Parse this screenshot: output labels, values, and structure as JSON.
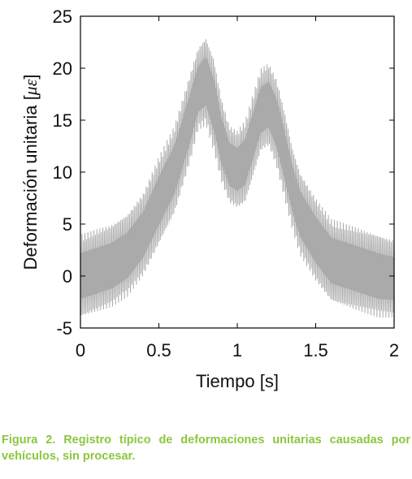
{
  "chart_data": {
    "type": "line",
    "title": "",
    "xlabel": "Tiempo [s]",
    "ylabel": "Deformación unitaria [",
    "ylabel_unit": "με",
    "ylabel_close": "]",
    "xlim": [
      0,
      2
    ],
    "ylim": [
      -5,
      25
    ],
    "xticks": [
      0,
      0.5,
      1,
      1.5,
      2
    ],
    "xtick_labels": [
      "0",
      "0.5",
      "1",
      "1.5",
      "2"
    ],
    "yticks": [
      -5,
      0,
      5,
      10,
      15,
      20,
      25
    ],
    "ytick_labels": [
      "-5",
      "0",
      "5",
      "10",
      "15",
      "20",
      "25"
    ],
    "grid": false,
    "series": [
      {
        "color": "#aaaaaa",
        "envelope_x": [
          0,
          0.1,
          0.2,
          0.3,
          0.4,
          0.5,
          0.6,
          0.7,
          0.75,
          0.8,
          0.85,
          0.9,
          0.95,
          1.0,
          1.05,
          1.1,
          1.15,
          1.2,
          1.25,
          1.3,
          1.35,
          1.4,
          1.5,
          1.6,
          1.7,
          1.8,
          1.9,
          2.0
        ],
        "envelope_upper": [
          4,
          4.5,
          5,
          6,
          8,
          11.5,
          14.5,
          19.5,
          22,
          23,
          21,
          17,
          14.5,
          14,
          15,
          17.5,
          20,
          20.5,
          19,
          16,
          12.5,
          10,
          7.5,
          5.5,
          5,
          4.5,
          4,
          3.5
        ],
        "envelope_lower": [
          -4,
          -3.5,
          -3,
          -2,
          0,
          3,
          6,
          11,
          14,
          14.5,
          12,
          9,
          7,
          6.5,
          7,
          9.5,
          12,
          12.5,
          10.5,
          7.5,
          4.5,
          2,
          -0.5,
          -2.5,
          -3,
          -3.5,
          -4,
          -4
        ]
      }
    ]
  },
  "caption": {
    "text": "Figura 2. Registro típico de deformaciones unitarias causadas por vehículos, sin procesar.",
    "color": "#8dc63f"
  }
}
